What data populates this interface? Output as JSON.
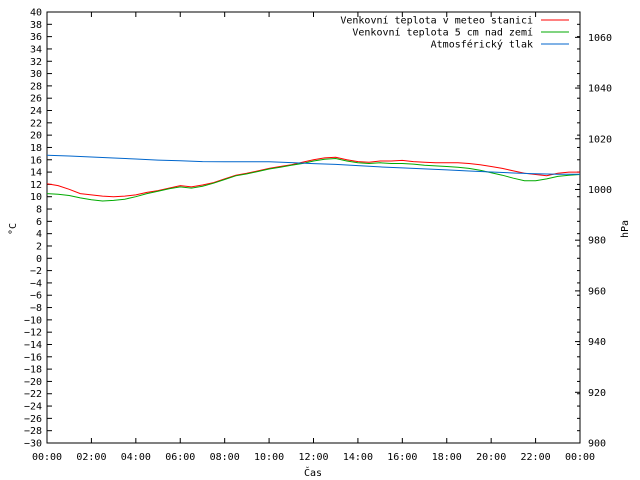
{
  "chart_data": {
    "type": "line",
    "xlabel": "Čas",
    "ylabel": "°C",
    "y2label": "hPa",
    "x_ticks": [
      "00:00",
      "02:00",
      "04:00",
      "06:00",
      "08:00",
      "10:00",
      "12:00",
      "14:00",
      "16:00",
      "18:00",
      "20:00",
      "22:00",
      "00:00"
    ],
    "xlim": [
      0,
      24
    ],
    "ylim": [
      -30,
      40
    ],
    "y_ticks": [
      40,
      38,
      36,
      34,
      32,
      30,
      28,
      26,
      24,
      22,
      20,
      18,
      16,
      14,
      12,
      10,
      8,
      6,
      4,
      2,
      0,
      -2,
      -4,
      -6,
      -8,
      -10,
      -12,
      -14,
      -16,
      -18,
      -20,
      -22,
      -24,
      -26,
      -28,
      -30
    ],
    "y2lim": [
      900,
      1070
    ],
    "y2_ticks": [
      1060,
      1040,
      1020,
      1000,
      980,
      960,
      940,
      920,
      900
    ],
    "grid": false,
    "legend_position": "top-right",
    "series": [
      {
        "name": "Venkovní teplota v meteo stanici",
        "color": "#ff0000",
        "axis": "left",
        "x": [
          0,
          0.5,
          1,
          1.5,
          2,
          2.5,
          3,
          3.5,
          4,
          4.5,
          5,
          5.5,
          6,
          6.5,
          7,
          7.5,
          8,
          8.5,
          9,
          9.5,
          10,
          10.5,
          11,
          11.5,
          12,
          12.5,
          13,
          13.5,
          14,
          14.5,
          15,
          15.5,
          16,
          16.5,
          17,
          17.5,
          18,
          18.5,
          19,
          19.5,
          20,
          20.5,
          21,
          21.5,
          22,
          22.5,
          23,
          23.5,
          24
        ],
        "values": [
          12.1,
          11.8,
          11.2,
          10.5,
          10.3,
          10.1,
          10.0,
          10.1,
          10.3,
          10.7,
          11.0,
          11.4,
          11.8,
          11.6,
          11.9,
          12.3,
          12.9,
          13.5,
          13.8,
          14.2,
          14.6,
          14.9,
          15.2,
          15.6,
          16.0,
          16.3,
          16.4,
          16.0,
          15.7,
          15.6,
          15.8,
          15.8,
          15.9,
          15.7,
          15.6,
          15.5,
          15.5,
          15.5,
          15.4,
          15.2,
          14.9,
          14.6,
          14.2,
          13.8,
          13.6,
          13.4,
          13.8,
          14.0,
          14.0
        ]
      },
      {
        "name": "Venkovní teplota 5 cm nad zemí",
        "color": "#00aa00",
        "axis": "left",
        "x": [
          0,
          0.5,
          1,
          1.5,
          2,
          2.5,
          3,
          3.5,
          4,
          4.5,
          5,
          5.5,
          6,
          6.5,
          7,
          7.5,
          8,
          8.5,
          9,
          9.5,
          10,
          10.5,
          11,
          11.5,
          12,
          12.5,
          13,
          13.5,
          14,
          14.5,
          15,
          15.5,
          16,
          16.5,
          17,
          17.5,
          18,
          18.5,
          19,
          19.5,
          20,
          20.5,
          21,
          21.5,
          22,
          22.5,
          23,
          23.5,
          24
        ],
        "values": [
          10.5,
          10.4,
          10.2,
          9.8,
          9.5,
          9.3,
          9.4,
          9.6,
          10.0,
          10.5,
          10.9,
          11.3,
          11.6,
          11.4,
          11.7,
          12.2,
          12.8,
          13.4,
          13.7,
          14.1,
          14.5,
          14.8,
          15.1,
          15.4,
          15.8,
          16.1,
          16.2,
          15.8,
          15.5,
          15.4,
          15.5,
          15.4,
          15.4,
          15.3,
          15.1,
          15.0,
          14.9,
          14.8,
          14.6,
          14.3,
          13.9,
          13.5,
          13.0,
          12.6,
          12.6,
          12.9,
          13.3,
          13.5,
          13.6
        ]
      },
      {
        "name": "Atmosférický tlak",
        "color": "#0066cc",
        "axis": "right",
        "x": [
          0,
          1,
          2,
          3,
          4,
          5,
          6,
          7,
          8,
          9,
          10,
          11,
          12,
          13,
          14,
          15,
          16,
          17,
          18,
          19,
          20,
          21,
          22,
          23,
          24
        ],
        "values": [
          1013.5,
          1013.2,
          1012.8,
          1012.4,
          1012.0,
          1011.6,
          1011.3,
          1011.0,
          1010.9,
          1010.9,
          1010.9,
          1010.6,
          1010.2,
          1009.9,
          1009.4,
          1008.9,
          1008.5,
          1008.1,
          1007.7,
          1007.3,
          1006.9,
          1006.5,
          1006.2,
          1006.0,
          1006.0
        ]
      }
    ]
  }
}
